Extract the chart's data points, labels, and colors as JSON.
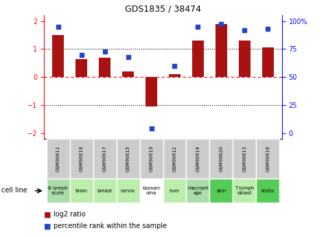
{
  "title": "GDS1835 / 38474",
  "samples": [
    "GSM90611",
    "GSM90618",
    "GSM90617",
    "GSM90615",
    "GSM90619",
    "GSM90612",
    "GSM90614",
    "GSM90620",
    "GSM90613",
    "GSM90616"
  ],
  "cell_lines": [
    "B lymph\nocyte",
    "brain",
    "breast",
    "cervix",
    "liposarc\noma",
    "liver",
    "macroph\nage",
    "skin",
    "T lymph\noblast",
    "testis"
  ],
  "cell_line_colors": [
    "#aaddaa",
    "#bbeeaa",
    "#bbeeaa",
    "#bbeeaa",
    "#ffffff",
    "#bbeeaa",
    "#aaddaa",
    "#55cc55",
    "#bbeeaa",
    "#55cc55"
  ],
  "log2_ratio": [
    1.5,
    0.65,
    0.7,
    0.2,
    -1.05,
    0.1,
    1.3,
    1.9,
    1.3,
    1.05
  ],
  "percentile_rank": [
    95,
    70,
    73,
    68,
    4,
    60,
    95,
    97,
    92,
    93
  ],
  "bar_color": "#aa1111",
  "dot_color": "#2244cc",
  "ylim": [
    -2.2,
    2.2
  ],
  "y_ticks_left": [
    -2,
    -1,
    0,
    1,
    2
  ],
  "y_ticks_right": [
    0,
    25,
    50,
    75,
    100
  ],
  "legend_items": [
    "log2 ratio",
    "percentile rank within the sample"
  ],
  "cell_line_label": "cell line",
  "sample_bg": "#cccccc"
}
